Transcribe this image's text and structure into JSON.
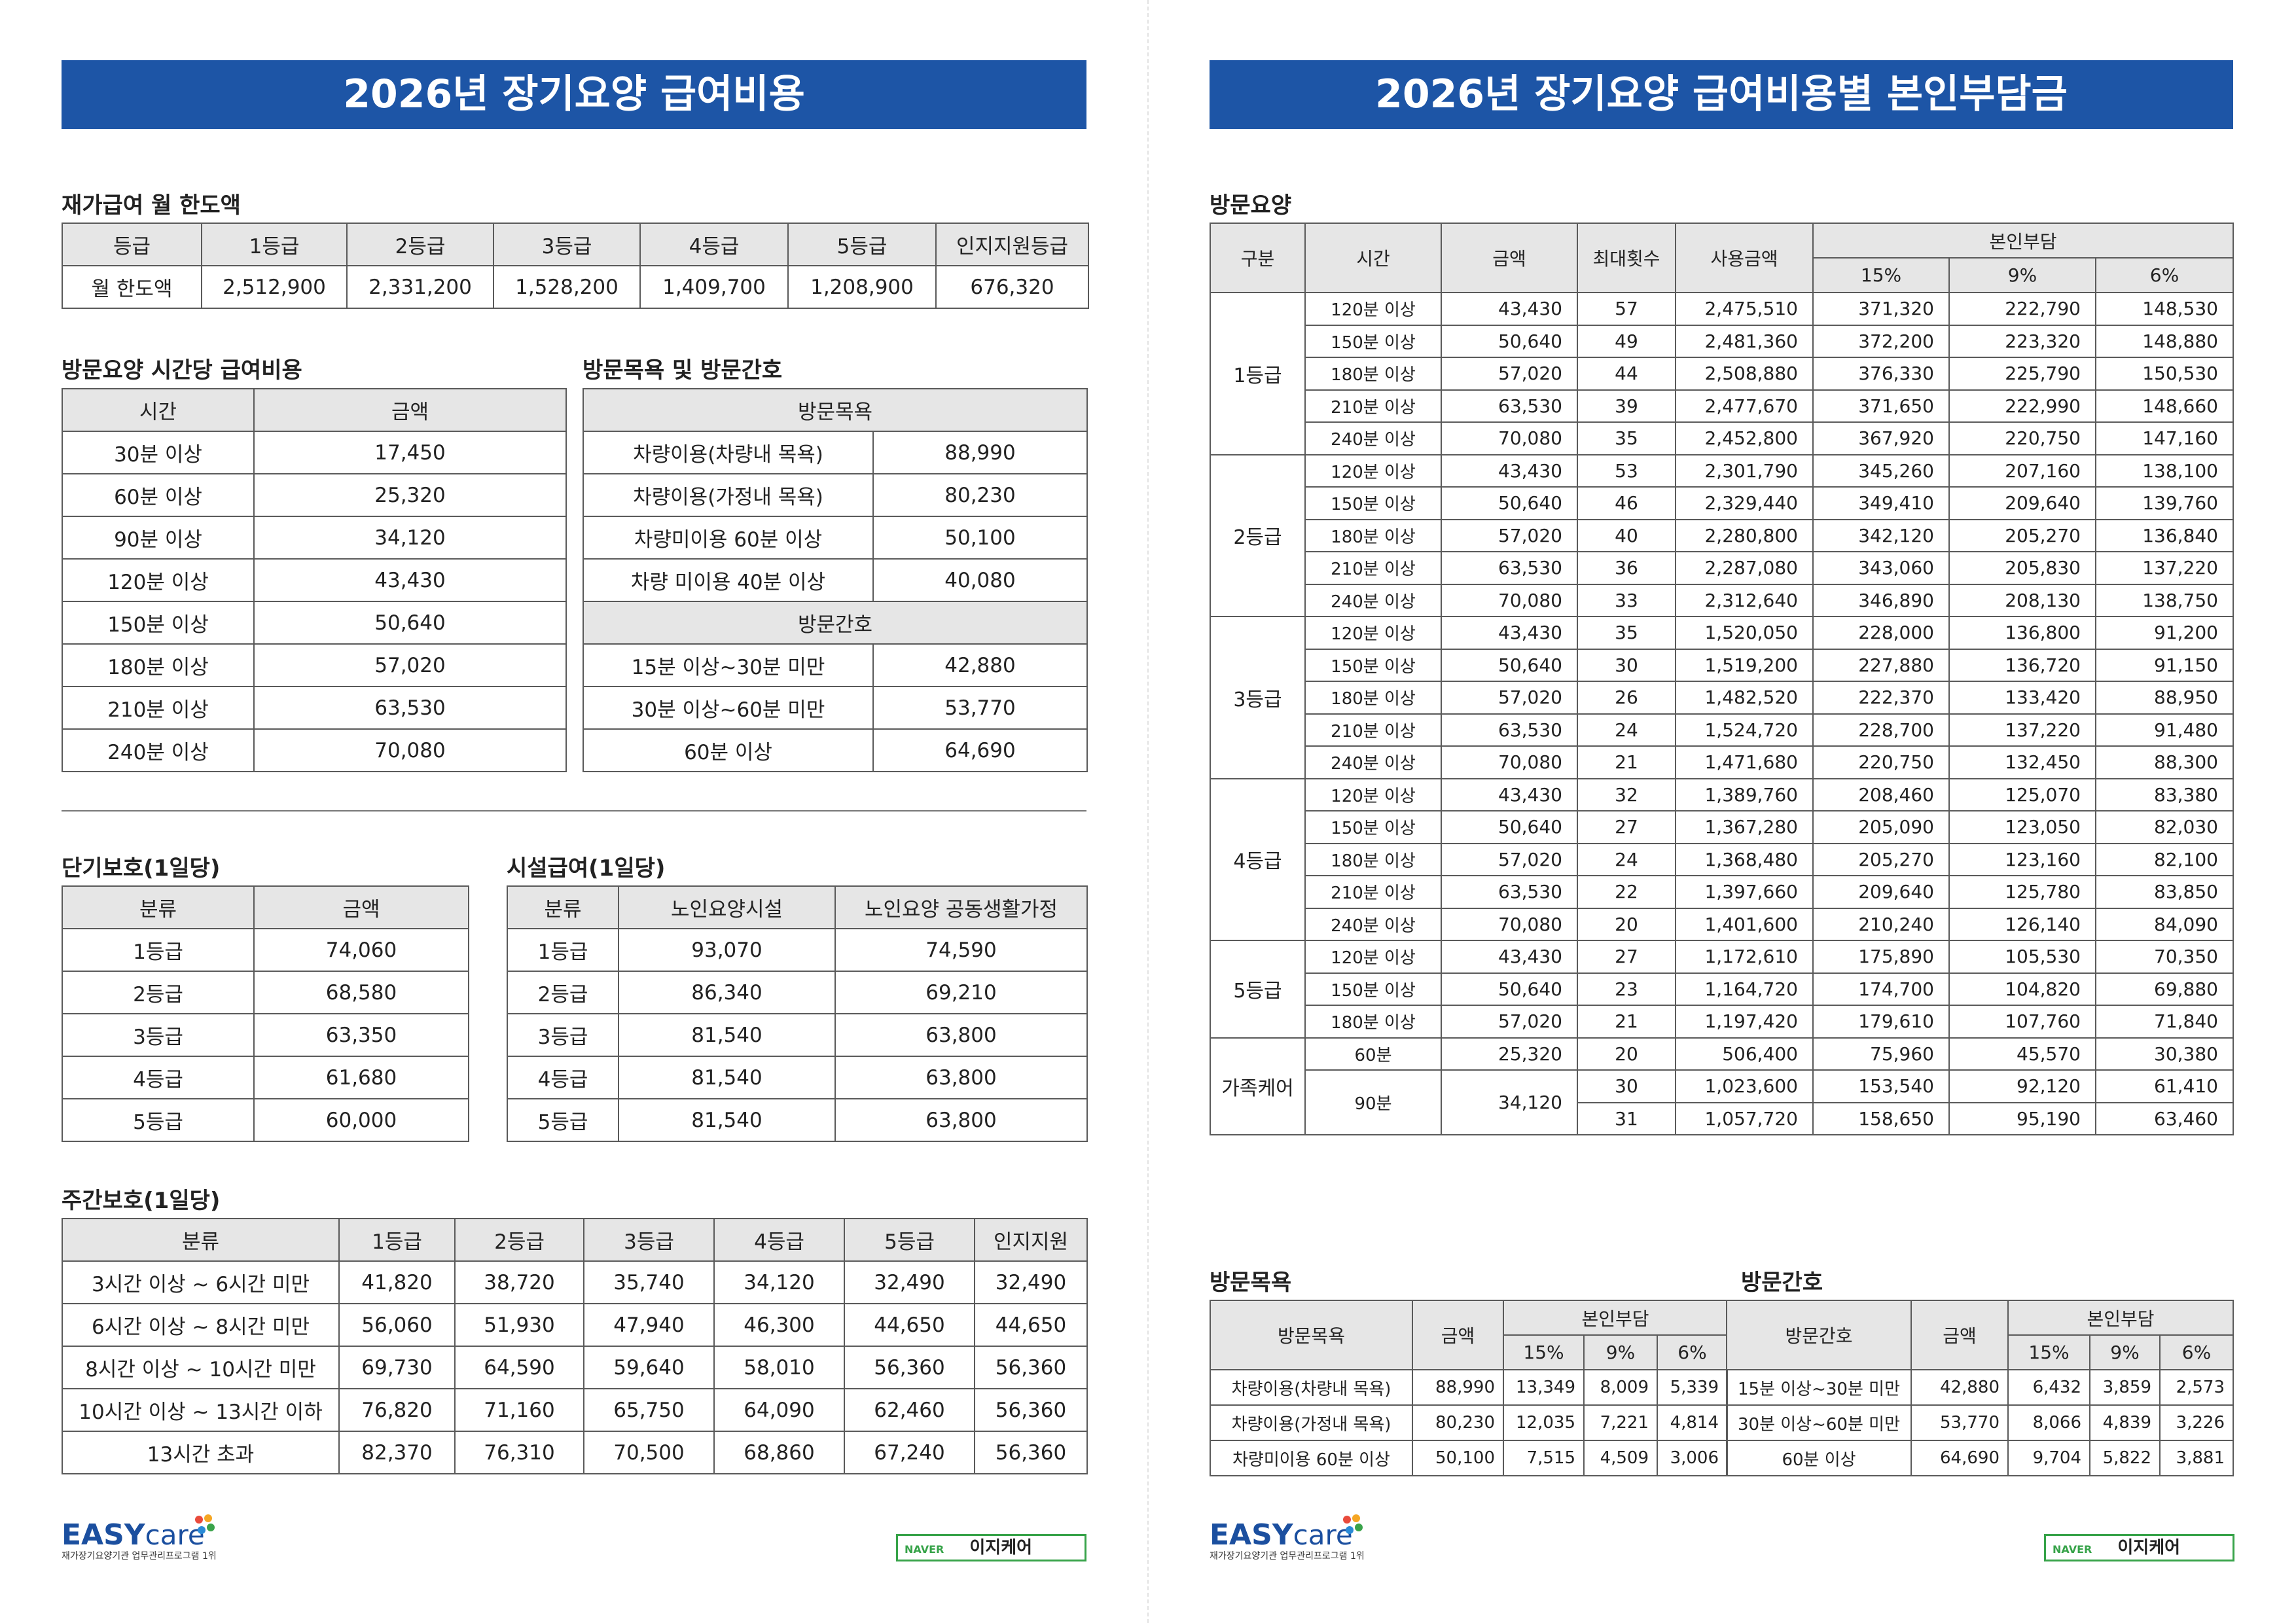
{
  "left": {
    "title": "2026년 장기요양 급여비용",
    "home_limit": {
      "title": "재가급여 월 한도액",
      "header": [
        "등급",
        "1등급",
        "2등급",
        "3등급",
        "4등급",
        "5등급",
        "인지지원등급"
      ],
      "row": [
        "월 한도액",
        "2,512,900",
        "2,331,200",
        "1,528,200",
        "1,409,700",
        "1,208,900",
        "676,320"
      ]
    },
    "visit_care": {
      "title": "방문요양 시간당 급여비용",
      "header": [
        "시간",
        "금액"
      ],
      "rows": [
        [
          "30분 이상",
          "17,450"
        ],
        [
          "60분 이상",
          "25,320"
        ],
        [
          "90분 이상",
          "34,120"
        ],
        [
          "120분 이상",
          "43,430"
        ],
        [
          "150분 이상",
          "50,640"
        ],
        [
          "180분 이상",
          "57,020"
        ],
        [
          "210분 이상",
          "63,530"
        ],
        [
          "240분 이상",
          "70,080"
        ]
      ]
    },
    "bath_nursing": {
      "title": "방문목욕 및 방문간호",
      "sections": [
        {
          "heading": "방문목욕",
          "rows": [
            [
              "차량이용(차량내 목욕)",
              "88,990"
            ],
            [
              "차량이용(가정내 목욕)",
              "80,230"
            ],
            [
              "차량미이용 60분 이상",
              "50,100"
            ],
            [
              "차량 미이용 40분 이상",
              "40,080"
            ]
          ]
        },
        {
          "heading": "방문간호",
          "rows": [
            [
              "15분 이상~30분 미만",
              "42,880"
            ],
            [
              "30분 이상~60분 미만",
              "53,770"
            ],
            [
              "60분 이상",
              "64,690"
            ]
          ]
        }
      ]
    },
    "short_term": {
      "title": "단기보호(1일당)",
      "header": [
        "분류",
        "금액"
      ],
      "rows": [
        [
          "1등급",
          "74,060"
        ],
        [
          "2등급",
          "68,580"
        ],
        [
          "3등급",
          "63,350"
        ],
        [
          "4등급",
          "61,680"
        ],
        [
          "5등급",
          "60,000"
        ]
      ]
    },
    "facility": {
      "title": "시설급여(1일당)",
      "header": [
        "분류",
        "노인요양시설",
        "노인요양 공동생활가정"
      ],
      "rows": [
        [
          "1등급",
          "93,070",
          "74,590"
        ],
        [
          "2등급",
          "86,340",
          "69,210"
        ],
        [
          "3등급",
          "81,540",
          "63,800"
        ],
        [
          "4등급",
          "81,540",
          "63,800"
        ],
        [
          "5등급",
          "81,540",
          "63,800"
        ]
      ]
    },
    "day_care": {
      "title": "주간보호(1일당)",
      "header": [
        "분류",
        "1등급",
        "2등급",
        "3등급",
        "4등급",
        "5등급",
        "인지지원"
      ],
      "rows": [
        [
          "3시간 이상 ~ 6시간 미만",
          "41,820",
          "38,720",
          "35,740",
          "34,120",
          "32,490",
          "32,490"
        ],
        [
          "6시간 이상 ~ 8시간 미만",
          "56,060",
          "51,930",
          "47,940",
          "46,300",
          "44,650",
          "44,650"
        ],
        [
          "8시간 이상 ~ 10시간 미만",
          "69,730",
          "64,590",
          "59,640",
          "58,010",
          "56,360",
          "56,360"
        ],
        [
          "10시간 이상 ~ 13시간 이하",
          "76,820",
          "71,160",
          "65,750",
          "64,090",
          "62,460",
          "56,360"
        ],
        [
          "13시간 초과",
          "82,370",
          "76,310",
          "70,500",
          "68,860",
          "67,240",
          "56,360"
        ]
      ]
    }
  },
  "right": {
    "title": "2026년 장기요양 급여비용별 본인부담금",
    "visit_care": {
      "title": "방문요양",
      "header": [
        "구분",
        "시간",
        "금액",
        "최대횟수",
        "사용금액",
        "본인부담"
      ],
      "sub": [
        "15%",
        "9%",
        "6%"
      ],
      "groups": [
        {
          "grade": "1등급",
          "rows": [
            [
              "120분 이상",
              "43,430",
              "57",
              "2,475,510",
              "371,320",
              "222,790",
              "148,530"
            ],
            [
              "150분 이상",
              "50,640",
              "49",
              "2,481,360",
              "372,200",
              "223,320",
              "148,880"
            ],
            [
              "180분 이상",
              "57,020",
              "44",
              "2,508,880",
              "376,330",
              "225,790",
              "150,530"
            ],
            [
              "210분 이상",
              "63,530",
              "39",
              "2,477,670",
              "371,650",
              "222,990",
              "148,660"
            ],
            [
              "240분 이상",
              "70,080",
              "35",
              "2,452,800",
              "367,920",
              "220,750",
              "147,160"
            ]
          ]
        },
        {
          "grade": "2등급",
          "rows": [
            [
              "120분 이상",
              "43,430",
              "53",
              "2,301,790",
              "345,260",
              "207,160",
              "138,100"
            ],
            [
              "150분 이상",
              "50,640",
              "46",
              "2,329,440",
              "349,410",
              "209,640",
              "139,760"
            ],
            [
              "180분 이상",
              "57,020",
              "40",
              "2,280,800",
              "342,120",
              "205,270",
              "136,840"
            ],
            [
              "210분 이상",
              "63,530",
              "36",
              "2,287,080",
              "343,060",
              "205,830",
              "137,220"
            ],
            [
              "240분 이상",
              "70,080",
              "33",
              "2,312,640",
              "346,890",
              "208,130",
              "138,750"
            ]
          ]
        },
        {
          "grade": "3등급",
          "rows": [
            [
              "120분 이상",
              "43,430",
              "35",
              "1,520,050",
              "228,000",
              "136,800",
              "91,200"
            ],
            [
              "150분 이상",
              "50,640",
              "30",
              "1,519,200",
              "227,880",
              "136,720",
              "91,150"
            ],
            [
              "180분 이상",
              "57,020",
              "26",
              "1,482,520",
              "222,370",
              "133,420",
              "88,950"
            ],
            [
              "210분 이상",
              "63,530",
              "24",
              "1,524,720",
              "228,700",
              "137,220",
              "91,480"
            ],
            [
              "240분 이상",
              "70,080",
              "21",
              "1,471,680",
              "220,750",
              "132,450",
              "88,300"
            ]
          ]
        },
        {
          "grade": "4등급",
          "rows": [
            [
              "120분 이상",
              "43,430",
              "32",
              "1,389,760",
              "208,460",
              "125,070",
              "83,380"
            ],
            [
              "150분 이상",
              "50,640",
              "27",
              "1,367,280",
              "205,090",
              "123,050",
              "82,030"
            ],
            [
              "180분 이상",
              "57,020",
              "24",
              "1,368,480",
              "205,270",
              "123,160",
              "82,100"
            ],
            [
              "210분 이상",
              "63,530",
              "22",
              "1,397,660",
              "209,640",
              "125,780",
              "83,850"
            ],
            [
              "240분 이상",
              "70,080",
              "20",
              "1,401,600",
              "210,240",
              "126,140",
              "84,090"
            ]
          ]
        },
        {
          "grade": "5등급",
          "rows": [
            [
              "120분 이상",
              "43,430",
              "27",
              "1,172,610",
              "175,890",
              "105,530",
              "70,350"
            ],
            [
              "150분 이상",
              "50,640",
              "23",
              "1,164,720",
              "174,700",
              "104,820",
              "69,880"
            ],
            [
              "180분 이상",
              "57,020",
              "21",
              "1,197,420",
              "179,610",
              "107,760",
              "71,840"
            ]
          ]
        }
      ],
      "family": {
        "label": "가족케어",
        "items": [
          {
            "time": "60분",
            "amount": "25,320",
            "rows": [
              [
                "20",
                "506,400",
                "75,960",
                "45,570",
                "30,380"
              ]
            ]
          },
          {
            "time": "90분",
            "amount": "34,120",
            "rows": [
              [
                "30",
                "1,023,600",
                "153,540",
                "92,120",
                "61,410"
              ],
              [
                "31",
                "1,057,720",
                "158,650",
                "95,190",
                "63,460"
              ]
            ]
          }
        ]
      }
    },
    "bath": {
      "title": "방문목욕",
      "header": [
        "방문목욕",
        "금액",
        "본인부담"
      ],
      "sub": [
        "15%",
        "9%",
        "6%"
      ],
      "rows": [
        [
          "차량이용(차량내 목욕)",
          "88,990",
          "13,349",
          "8,009",
          "5,339"
        ],
        [
          "차량이용(가정내 목욕)",
          "80,230",
          "12,035",
          "7,221",
          "4,814"
        ],
        [
          "차량미이용 60분 이상",
          "50,100",
          "7,515",
          "4,509",
          "3,006"
        ]
      ]
    },
    "nursing": {
      "title": "방문간호",
      "header": [
        "방문간호",
        "금액",
        "본인부담"
      ],
      "sub": [
        "15%",
        "9%",
        "6%"
      ],
      "rows": [
        [
          "15분 이상~30분 미만",
          "42,880",
          "6,432",
          "3,859",
          "2,573"
        ],
        [
          "30분 이상~60분 미만",
          "53,770",
          "8,066",
          "4,839",
          "3,226"
        ],
        [
          "60분 이상",
          "64,690",
          "9,704",
          "5,822",
          "3,881"
        ]
      ]
    }
  },
  "footer": {
    "brand": "EASY",
    "brand_suffix": "care",
    "tagline": "재가장기요양기관 업무관리프로그램 1위",
    "search_engine": "NAVER",
    "search_query": "이지케어"
  }
}
